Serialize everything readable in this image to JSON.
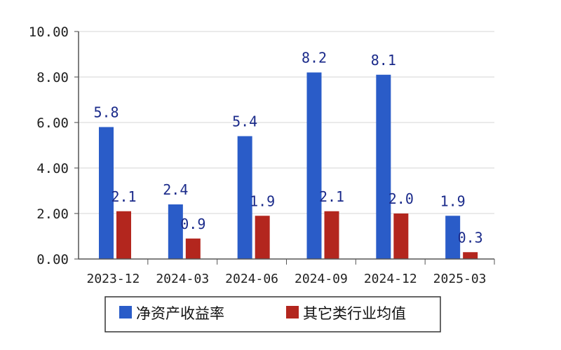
{
  "chart_data": {
    "type": "bar",
    "categories": [
      "2023-12",
      "2024-03",
      "2024-06",
      "2024-09",
      "2024-12",
      "2025-03"
    ],
    "series": [
      {
        "name": "净资产收益率",
        "color": "#2a5cc8",
        "values": [
          5.8,
          2.4,
          5.4,
          8.2,
          8.1,
          1.9
        ]
      },
      {
        "name": "其它类行业均值",
        "color": "#b3261e",
        "values": [
          2.1,
          0.9,
          1.9,
          2.1,
          2.0,
          0.3
        ]
      }
    ],
    "yticks": [
      "0.00",
      "2.00",
      "4.00",
      "6.00",
      "8.00",
      "10.00"
    ],
    "ylim": [
      0,
      10
    ],
    "grid": true,
    "legend_position": "bottom"
  }
}
